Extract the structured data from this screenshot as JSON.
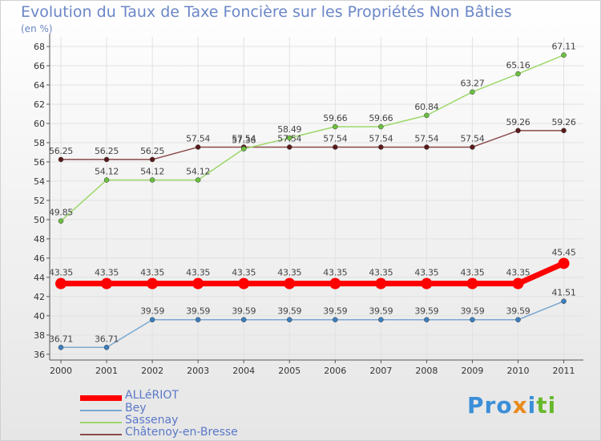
{
  "title": "Evolution du Taux de Taxe Foncière sur les Propriétés Non Bâties",
  "unit": "(en %)",
  "logo": "Proxiti",
  "colors": {
    "axis": "#555555",
    "grid": "#e2e2e2",
    "tick_label": "#333333",
    "data_label": "#444444"
  },
  "chart_data": {
    "type": "line",
    "title": "Evolution du Taux de Taxe Foncière sur les Propriétés Non Bâties",
    "ylabel": "(en %)",
    "xlabel": "",
    "x": [
      "2000",
      "2001",
      "2002",
      "2003",
      "2004",
      "2005",
      "2006",
      "2007",
      "2008",
      "2009",
      "2010",
      "2011"
    ],
    "yticks": [
      36,
      38,
      40,
      42,
      44,
      46,
      48,
      50,
      52,
      54,
      56,
      58,
      60,
      62,
      64,
      66,
      68
    ],
    "ylim": [
      35.4,
      69
    ],
    "grid": true,
    "legend_position": "bottom-left",
    "series": [
      {
        "name": "ALLéRIOT",
        "color": "#ff0000",
        "marker": "#ff0000",
        "line_width": 7,
        "marker_radius": 7,
        "values": [
          43.35,
          43.35,
          43.35,
          43.35,
          43.35,
          43.35,
          43.35,
          43.35,
          43.35,
          43.35,
          43.35,
          45.45
        ],
        "labels": [
          "43.35",
          "43.35",
          "43.35",
          "43.35",
          "43.35",
          "43.35",
          "43.35",
          "43.35",
          "43.35",
          "43.35",
          "43.35",
          "45.45"
        ]
      },
      {
        "name": "Bey",
        "color": "#7aa8d0",
        "marker": "#3a7fc0",
        "line_width": 1.5,
        "marker_radius": 3,
        "values": [
          36.71,
          36.71,
          39.59,
          39.59,
          39.59,
          39.59,
          39.59,
          39.59,
          39.59,
          39.59,
          39.59,
          41.51
        ],
        "labels": [
          "36.71",
          "36.71",
          "39.59",
          "39.59",
          "39.59",
          "39.59",
          "39.59",
          "39.59",
          "39.59",
          "39.59",
          "39.59",
          "41.51"
        ]
      },
      {
        "name": "Sassenay",
        "color": "#9cd86a",
        "marker": "#6cc040",
        "line_width": 1.5,
        "marker_radius": 3,
        "values": [
          49.85,
          54.12,
          54.12,
          54.12,
          57.36,
          58.49,
          59.66,
          59.66,
          60.84,
          63.27,
          65.16,
          67.11
        ],
        "labels": [
          "49.85",
          "54.12",
          "54.12",
          "54.12",
          "57.36",
          "58.49",
          "59.66",
          "59.66",
          "60.84",
          "63.27",
          "65.16",
          "67.11"
        ]
      },
      {
        "name": "Châtenoy-en-Bresse",
        "color": "#8a4a4a",
        "marker": "#5a1a1a",
        "line_width": 1.5,
        "marker_radius": 3,
        "values": [
          56.25,
          56.25,
          56.25,
          57.54,
          57.54,
          57.54,
          57.54,
          57.54,
          57.54,
          57.54,
          59.26,
          59.26
        ],
        "labels": [
          "56.25",
          "56.25",
          "56.25",
          "57.54",
          "57.54",
          "57.54",
          "57.54",
          "57.54",
          "57.54",
          "57.54",
          "59.26",
          "59.26"
        ]
      }
    ]
  }
}
